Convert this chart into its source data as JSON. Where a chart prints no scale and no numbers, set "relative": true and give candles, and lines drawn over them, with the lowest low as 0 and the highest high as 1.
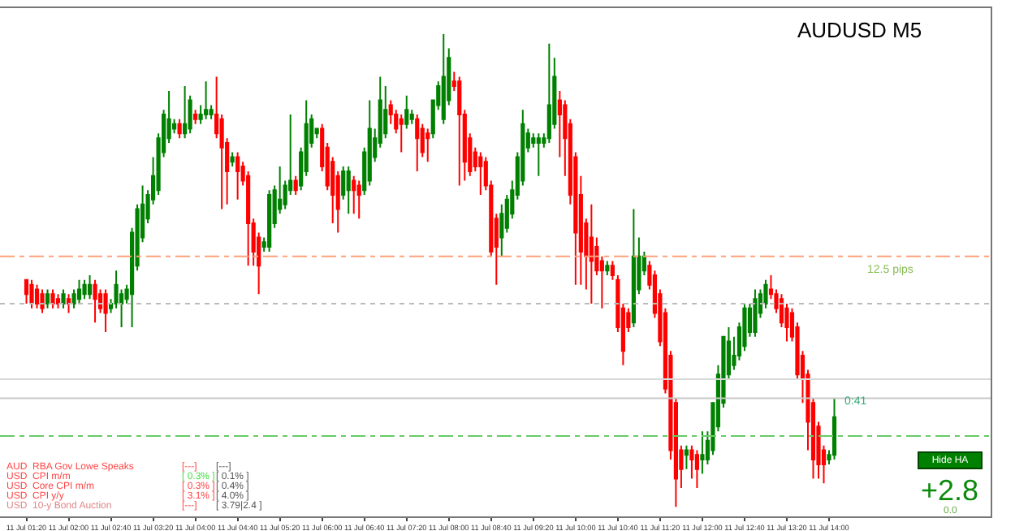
{
  "chart_data": {
    "type": "candlestick",
    "relative": true,
    "legend": false,
    "tick_labels": "x",
    "colors": [
      "#ff0000",
      "#ff0000",
      "#ff0000",
      "#ff0000",
      "#008000",
      "#ff0000",
      "#ff0000",
      "#008000",
      "#ff0000",
      "#008000",
      "#008000",
      "#008000",
      "#008000",
      "#ff0000",
      "#ff0000",
      "#ff0000",
      "#008000",
      "#008000",
      "#008000",
      "#008000",
      "#008000",
      "#008000",
      "#008000",
      "#008000",
      "#008000",
      "#008000",
      "#008000",
      "#008000",
      "#008000",
      "#ff0000",
      "#008000",
      "#008000",
      "#ff0000",
      "#008000",
      "#008000",
      "#008000",
      "#ff0000",
      "#ff0000",
      "#ff0000",
      "#008000",
      "#ff0000",
      "#ff0000",
      "#ff0000",
      "#ff0000",
      "#ff0000",
      "#008000",
      "#008000",
      "#008000",
      "#008000",
      "#008000",
      "#008000",
      "#ff0000",
      "#008000",
      "#008000",
      "#008000",
      "#008000",
      "#ff0000",
      "#ff0000",
      "#ff0000",
      "#ff0000",
      "#008000",
      "#008000",
      "#ff0000",
      "#ff0000",
      "#008000",
      "#008000",
      "#008000",
      "#008000",
      "#008000",
      "#ff0000",
      "#ff0000",
      "#ff0000",
      "#008000",
      "#008000",
      "#ff0000",
      "#ff0000",
      "#ff0000",
      "#008000",
      "#008000",
      "#008000",
      "#008000",
      "#ff0000",
      "#ff0000",
      "#ff0000",
      "#ff0000",
      "#ff0000",
      "#ff0000",
      "#ff0000",
      "#ff0000",
      "#ff0000",
      "#008000",
      "#008000",
      "#008000",
      "#008000",
      "#008000",
      "#008000",
      "#008000",
      "#008000",
      "#008000",
      "#008000",
      "#008000",
      "#ff0000",
      "#ff0000",
      "#ff0000",
      "#ff0000",
      "#ff0000",
      "#ff0000",
      "#ff0000",
      "#ff0000",
      "#ff0000",
      "#008000",
      "#ff0000",
      "#ff0000",
      "#ff0000",
      "#ff0000",
      "#008000",
      "#008000",
      "#008000",
      "#ff0000",
      "#ff0000",
      "#ff0000",
      "#ff0000",
      "#ff0000",
      "#ff0000",
      "#ff0000",
      "#008000",
      "#ff0000",
      "#ff0000",
      "#008000",
      "#008000",
      "#008000",
      "#008000",
      "#008000",
      "#008000",
      "#008000",
      "#008000",
      "#008000",
      "#008000",
      "#008000",
      "#008000",
      "#008000",
      "#ff0000",
      "#ff0000",
      "#ff0000",
      "#ff0000",
      "#ff0000",
      "#ff0000",
      "#ff0000",
      "#ff0000",
      "#ff0000",
      "#ff0000",
      "#ff0000",
      "#008000",
      "#008000"
    ],
    "categories": [
      "11 Jul 01:20",
      null,
      null,
      null,
      null,
      null,
      null,
      null,
      "11 Jul 02:00",
      null,
      null,
      null,
      null,
      null,
      null,
      null,
      "11 Jul 02:40",
      null,
      null,
      null,
      null,
      null,
      null,
      null,
      "11 Jul 03:20",
      null,
      null,
      null,
      null,
      null,
      null,
      null,
      "11 Jul 04:00",
      null,
      null,
      null,
      null,
      null,
      null,
      null,
      "11 Jul 04:40",
      null,
      null,
      null,
      null,
      null,
      null,
      null,
      "11 Jul 05:20",
      null,
      null,
      null,
      null,
      null,
      null,
      null,
      "11 Jul 06:00",
      null,
      null,
      null,
      null,
      null,
      null,
      null,
      "11 Jul 06:40",
      null,
      null,
      null,
      null,
      null,
      null,
      null,
      "11 Jul 07:20",
      null,
      null,
      null,
      null,
      null,
      null,
      null,
      "11 Jul 08:00",
      null,
      null,
      null,
      null,
      null,
      null,
      null,
      "11 Jul 08:40",
      null,
      null,
      null,
      null,
      null,
      null,
      null,
      "11 Jul 09:20",
      null,
      null,
      null,
      null,
      null,
      null,
      null,
      "11 Jul 10:00",
      null,
      null,
      null,
      null,
      null,
      null,
      null,
      "11 Jul 10:40",
      null,
      null,
      null,
      null,
      null,
      null,
      null,
      "11 Jul 11:20",
      null,
      null,
      null,
      null,
      null,
      null,
      null,
      "11 Jul 12:00",
      null,
      null,
      null,
      null,
      null,
      null,
      null,
      "11 Jul 12:40",
      null,
      null,
      null,
      null,
      null,
      null,
      null,
      "11 Jul 13:20",
      null,
      null,
      null,
      null,
      null,
      null,
      null,
      "11 Jul 14:00",
      null
    ],
    "ohlc": [
      [
        0.48,
        0.48,
        0.43,
        0.45
      ],
      [
        0.47,
        0.48,
        0.42,
        0.43
      ],
      [
        0.46,
        0.47,
        0.42,
        0.43
      ],
      [
        0.45,
        0.46,
        0.41,
        0.42
      ],
      [
        0.43,
        0.46,
        0.42,
        0.45
      ],
      [
        0.45,
        0.46,
        0.42,
        0.43
      ],
      [
        0.44,
        0.45,
        0.42,
        0.43
      ],
      [
        0.43,
        0.46,
        0.42,
        0.45
      ],
      [
        0.44,
        0.45,
        0.41,
        0.43
      ],
      [
        0.43,
        0.46,
        0.42,
        0.45
      ],
      [
        0.44,
        0.48,
        0.43,
        0.46
      ],
      [
        0.45,
        0.48,
        0.44,
        0.47
      ],
      [
        0.45,
        0.49,
        0.44,
        0.47
      ],
      [
        0.47,
        0.48,
        0.39,
        0.44
      ],
      [
        0.45,
        0.46,
        0.41,
        0.42
      ],
      [
        0.45,
        0.46,
        0.37,
        0.41
      ],
      [
        0.42,
        0.44,
        0.41,
        0.43
      ],
      [
        0.43,
        0.5,
        0.42,
        0.47
      ],
      [
        0.43,
        0.46,
        0.38,
        0.45
      ],
      [
        0.44,
        0.47,
        0.43,
        0.46
      ],
      [
        0.45,
        0.59,
        0.38,
        0.58
      ],
      [
        0.51,
        0.64,
        0.5,
        0.63
      ],
      [
        0.57,
        0.68,
        0.56,
        0.64
      ],
      [
        0.61,
        0.67,
        0.6,
        0.66
      ],
      [
        0.65,
        0.74,
        0.64,
        0.7
      ],
      [
        0.67,
        0.79,
        0.66,
        0.78
      ],
      [
        0.75,
        0.84,
        0.74,
        0.83
      ],
      [
        0.78,
        0.88,
        0.77,
        0.82
      ],
      [
        0.8,
        0.82,
        0.79,
        0.81
      ],
      [
        0.81,
        0.82,
        0.78,
        0.79
      ],
      [
        0.79,
        0.89,
        0.78,
        0.81
      ],
      [
        0.8,
        0.87,
        0.79,
        0.86
      ],
      [
        0.83,
        0.84,
        0.81,
        0.82
      ],
      [
        0.82,
        0.85,
        0.81,
        0.83
      ],
      [
        0.83,
        0.9,
        0.82,
        0.84
      ],
      [
        0.83,
        0.85,
        0.82,
        0.84
      ],
      [
        0.83,
        0.91,
        0.78,
        0.79
      ],
      [
        0.82,
        0.83,
        0.63,
        0.76
      ],
      [
        0.77,
        0.78,
        0.64,
        0.71
      ],
      [
        0.73,
        0.75,
        0.72,
        0.74
      ],
      [
        0.74,
        0.75,
        0.65,
        0.71
      ],
      [
        0.72,
        0.73,
        0.68,
        0.69
      ],
      [
        0.7,
        0.71,
        0.51,
        0.6
      ],
      [
        0.6,
        0.61,
        0.51,
        0.54
      ],
      [
        0.57,
        0.58,
        0.45,
        0.51
      ],
      [
        0.55,
        0.57,
        0.54,
        0.56
      ],
      [
        0.55,
        0.67,
        0.54,
        0.66
      ],
      [
        0.6,
        0.68,
        0.59,
        0.67
      ],
      [
        0.63,
        0.72,
        0.62,
        0.65
      ],
      [
        0.64,
        0.69,
        0.63,
        0.68
      ],
      [
        0.67,
        0.83,
        0.66,
        0.69
      ],
      [
        0.69,
        0.7,
        0.66,
        0.67
      ],
      [
        0.68,
        0.76,
        0.67,
        0.75
      ],
      [
        0.71,
        0.86,
        0.7,
        0.81
      ],
      [
        0.77,
        0.83,
        0.76,
        0.82
      ],
      [
        0.79,
        0.8,
        0.78,
        0.8
      ],
      [
        0.8,
        0.81,
        0.71,
        0.72
      ],
      [
        0.76,
        0.77,
        0.67,
        0.68
      ],
      [
        0.73,
        0.74,
        0.6,
        0.66
      ],
      [
        0.7,
        0.71,
        0.58,
        0.63
      ],
      [
        0.66,
        0.72,
        0.65,
        0.71
      ],
      [
        0.67,
        0.72,
        0.62,
        0.71
      ],
      [
        0.69,
        0.7,
        0.62,
        0.67
      ],
      [
        0.68,
        0.69,
        0.61,
        0.66
      ],
      [
        0.67,
        0.76,
        0.66,
        0.75
      ],
      [
        0.69,
        0.86,
        0.68,
        0.8
      ],
      [
        0.74,
        0.8,
        0.73,
        0.78
      ],
      [
        0.77,
        0.91,
        0.76,
        0.86
      ],
      [
        0.79,
        0.89,
        0.78,
        0.84
      ],
      [
        0.85,
        0.86,
        0.81,
        0.83
      ],
      [
        0.83,
        0.84,
        0.79,
        0.8
      ],
      [
        0.82,
        0.83,
        0.75,
        0.81
      ],
      [
        0.81,
        0.87,
        0.8,
        0.84
      ],
      [
        0.82,
        0.84,
        0.81,
        0.83
      ],
      [
        0.82,
        0.83,
        0.71,
        0.78
      ],
      [
        0.8,
        0.81,
        0.74,
        0.75
      ],
      [
        0.79,
        0.8,
        0.73,
        0.78
      ],
      [
        0.79,
        0.86,
        0.78,
        0.86
      ],
      [
        0.85,
        0.9,
        0.84,
        0.89
      ],
      [
        0.82,
        1.0,
        0.81,
        0.91
      ],
      [
        0.86,
        0.97,
        0.85,
        0.95
      ],
      [
        0.9,
        0.92,
        0.88,
        0.89
      ],
      [
        0.9,
        0.91,
        0.68,
        0.83
      ],
      [
        0.83,
        0.84,
        0.69,
        0.73
      ],
      [
        0.78,
        0.79,
        0.7,
        0.71
      ],
      [
        0.75,
        0.76,
        0.71,
        0.72
      ],
      [
        0.74,
        0.75,
        0.66,
        0.72
      ],
      [
        0.73,
        0.74,
        0.67,
        0.68
      ],
      [
        0.68,
        0.69,
        0.53,
        0.54
      ],
      [
        0.61,
        0.62,
        0.47,
        0.55
      ],
      [
        0.57,
        0.64,
        0.53,
        0.62
      ],
      [
        0.59,
        0.66,
        0.58,
        0.65
      ],
      [
        0.62,
        0.69,
        0.61,
        0.67
      ],
      [
        0.66,
        0.75,
        0.65,
        0.74
      ],
      [
        0.69,
        0.84,
        0.68,
        0.81
      ],
      [
        0.76,
        0.8,
        0.75,
        0.79
      ],
      [
        0.77,
        0.79,
        0.76,
        0.78
      ],
      [
        0.77,
        0.79,
        0.7,
        0.78
      ],
      [
        0.77,
        0.79,
        0.76,
        0.78
      ],
      [
        0.78,
        0.98,
        0.77,
        0.85
      ],
      [
        0.81,
        0.95,
        0.8,
        0.91
      ],
      [
        0.86,
        0.88,
        0.74,
        0.83
      ],
      [
        0.85,
        0.86,
        0.7,
        0.78
      ],
      [
        0.81,
        0.82,
        0.64,
        0.66
      ],
      [
        0.74,
        0.75,
        0.47,
        0.58
      ],
      [
        0.66,
        0.7,
        0.47,
        0.54
      ],
      [
        0.6,
        0.61,
        0.46,
        0.53
      ],
      [
        0.57,
        0.64,
        0.43,
        0.52
      ],
      [
        0.55,
        0.57,
        0.49,
        0.5
      ],
      [
        0.52,
        0.53,
        0.42,
        0.5
      ],
      [
        0.5,
        0.52,
        0.49,
        0.51
      ],
      [
        0.51,
        0.52,
        0.48,
        0.49
      ],
      [
        0.48,
        0.49,
        0.37,
        0.38
      ],
      [
        0.42,
        0.43,
        0.3,
        0.33
      ],
      [
        0.41,
        0.42,
        0.37,
        0.38
      ],
      [
        0.39,
        0.63,
        0.38,
        0.53
      ],
      [
        0.46,
        0.57,
        0.45,
        0.53
      ],
      [
        0.5,
        0.54,
        0.49,
        0.53
      ],
      [
        0.51,
        0.52,
        0.46,
        0.47
      ],
      [
        0.49,
        0.5,
        0.4,
        0.41
      ],
      [
        0.45,
        0.46,
        0.34,
        0.35
      ],
      [
        0.41,
        0.42,
        0.24,
        0.25
      ],
      [
        0.32,
        0.33,
        0.1,
        0.12
      ],
      [
        0.22,
        0.23,
        0.0,
        0.06
      ],
      [
        0.12,
        0.13,
        0.04,
        0.08
      ],
      [
        0.11,
        0.13,
        0.08,
        0.12
      ],
      [
        0.12,
        0.13,
        0.06,
        0.1
      ],
      [
        0.11,
        0.12,
        0.04,
        0.08
      ],
      [
        0.1,
        0.16,
        0.07,
        0.11
      ],
      [
        0.1,
        0.16,
        0.09,
        0.14
      ],
      [
        0.12,
        0.22,
        0.11,
        0.22
      ],
      [
        0.17,
        0.3,
        0.16,
        0.28
      ],
      [
        0.22,
        0.36,
        0.21,
        0.36
      ],
      [
        0.28,
        0.38,
        0.27,
        0.35
      ],
      [
        0.3,
        0.36,
        0.29,
        0.32
      ],
      [
        0.32,
        0.39,
        0.31,
        0.38
      ],
      [
        0.34,
        0.43,
        0.33,
        0.42
      ],
      [
        0.37,
        0.43,
        0.36,
        0.42
      ],
      [
        0.37,
        0.46,
        0.36,
        0.44
      ],
      [
        0.41,
        0.46,
        0.4,
        0.45
      ],
      [
        0.43,
        0.48,
        0.42,
        0.47
      ],
      [
        0.46,
        0.49,
        0.44,
        0.45
      ],
      [
        0.45,
        0.46,
        0.41,
        0.42
      ],
      [
        0.44,
        0.45,
        0.38,
        0.39
      ],
      [
        0.42,
        0.43,
        0.35,
        0.38
      ],
      [
        0.41,
        0.42,
        0.35,
        0.36
      ],
      [
        0.38,
        0.39,
        0.27,
        0.28
      ],
      [
        0.32,
        0.33,
        0.22,
        0.27
      ],
      [
        0.28,
        0.29,
        0.12,
        0.18
      ],
      [
        0.22,
        0.23,
        0.06,
        0.1
      ],
      [
        0.17,
        0.18,
        0.06,
        0.09
      ],
      [
        0.12,
        0.13,
        0.05,
        0.09
      ],
      [
        0.1,
        0.12,
        0.09,
        0.11
      ],
      [
        0.11,
        0.23,
        0.1,
        0.19
      ]
    ],
    "ref_lines": [
      {
        "axis": "y",
        "value": 0.53,
        "label": "12.5 pips",
        "color": "#ffa07a",
        "line_style": "dashed"
      },
      {
        "axis": "y",
        "value": 0.43,
        "color": "#bbbbbb",
        "line_style": "dotted"
      },
      {
        "axis": "y",
        "value": 0.27,
        "color": "#d8d8d8",
        "line_style": "solid"
      },
      {
        "axis": "y",
        "value": 0.23,
        "color": "#c8c8c8",
        "line_style": "solid"
      },
      {
        "axis": "y",
        "value": 0.15,
        "color": "#66cc66",
        "line_style": "dashed"
      }
    ],
    "annotations": [
      "AUDUSD M5",
      "0:41",
      "Hide HA",
      "+2.8",
      "0.0",
      "AUD  RBA Gov Lowe Speaks",
      "[---]",
      "[---]",
      "USD  CPI m/m",
      "[ 0.3% ]",
      "[ 0.1% ]",
      "USD  Core CPI m/m",
      "[ 0.3% ]",
      "[ 0.4% ]",
      "USD  CPI y/y",
      "[ 3.1% ]",
      "[ 4.0% ]",
      "USD  10-y Bond Auction",
      "[---]",
      "[ 3.79|2.4 ]"
    ]
  }
}
